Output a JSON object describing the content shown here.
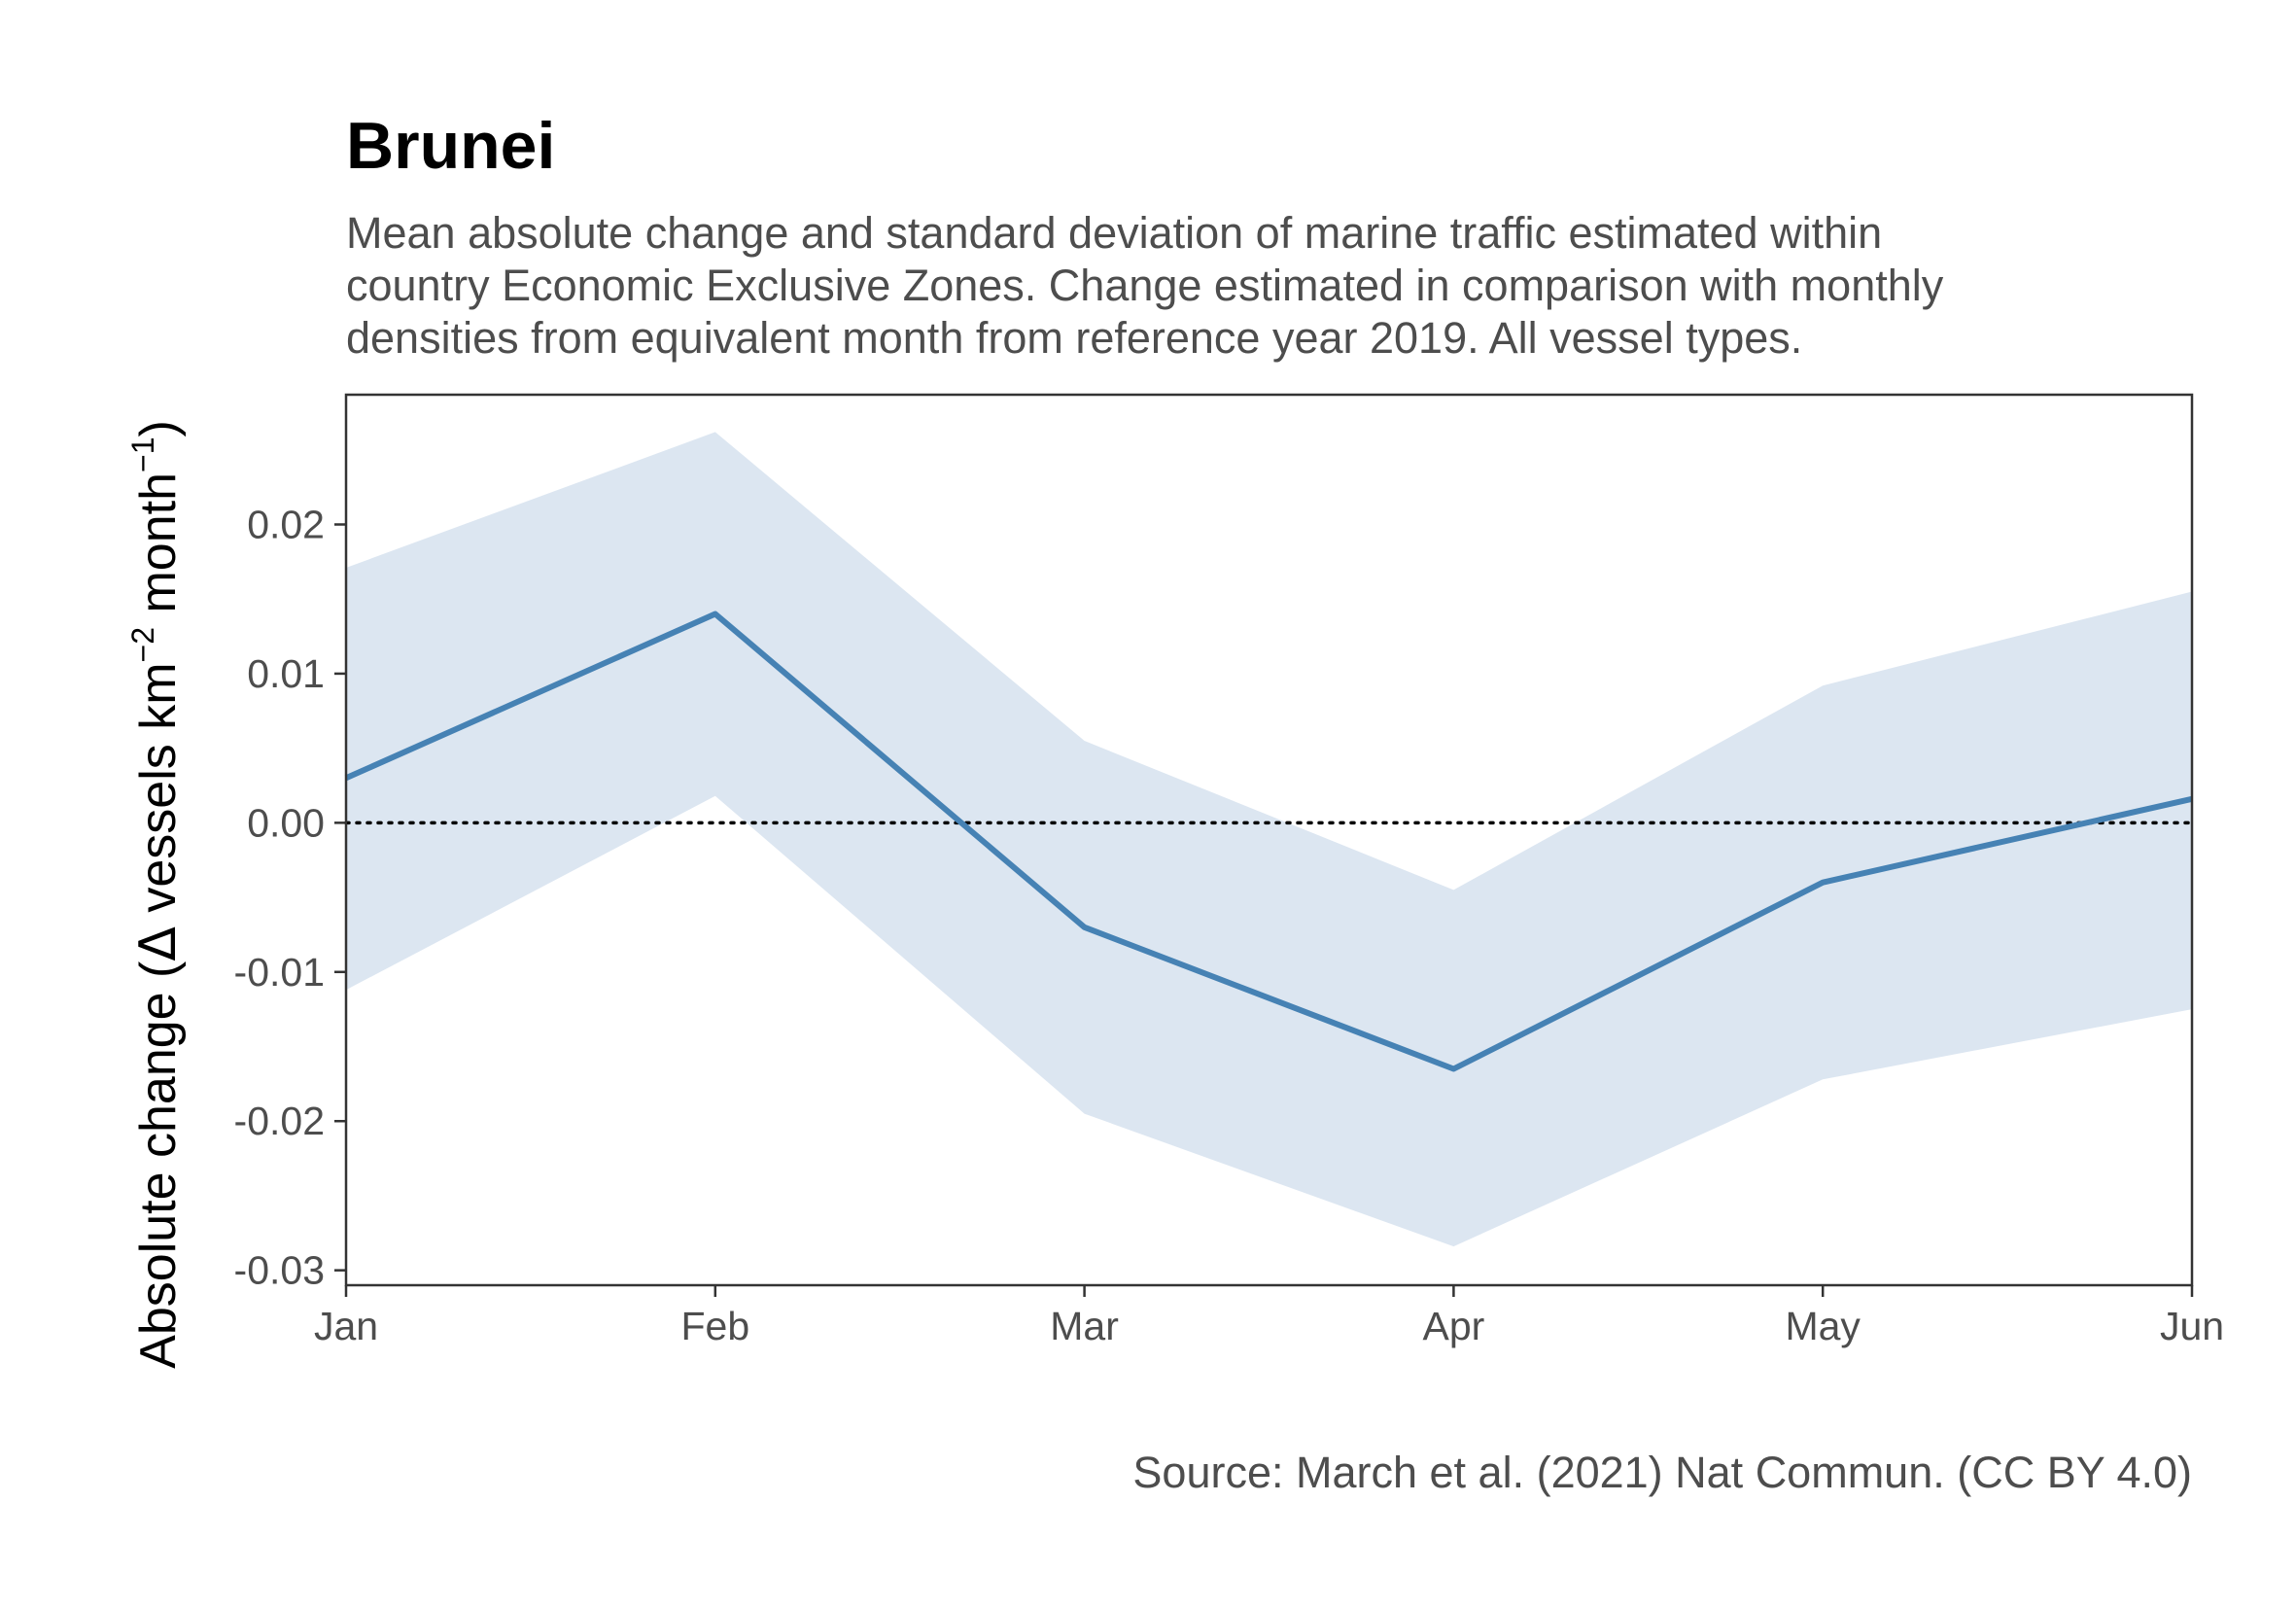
{
  "chart_data": {
    "type": "line",
    "title": "Brunei",
    "subtitle": [
      "Mean absolute change and standard deviation of marine traffic estimated within",
      "country Economic Exclusive Zones. Change estimated in comparison with monthly",
      "densities from equivalent month from reference year 2019. All vessel types."
    ],
    "ylabel": {
      "prefix": "Absolute change (",
      "delta": "Δ",
      "main": " vessels km",
      "sup1": "−2",
      "mid": " month",
      "sup2": "−1",
      "suffix": ")"
    },
    "xlabel": "",
    "categories": [
      "Jan",
      "Feb",
      "Mar",
      "Apr",
      "May",
      "Jun"
    ],
    "series": [
      {
        "values": [
          0.003,
          0.014,
          -0.007,
          -0.0165,
          -0.004,
          0.0016
        ],
        "lower": [
          -0.0112,
          0.0018,
          -0.0195,
          -0.0284,
          -0.0172,
          -0.0125
        ],
        "upper": [
          0.0171,
          0.0262,
          0.0055,
          -0.0045,
          0.0092,
          0.0155
        ],
        "line_color": "#4682b4",
        "band_color": "#dce6f1"
      }
    ],
    "yticks": [
      -0.03,
      -0.02,
      -0.01,
      0.0,
      0.01,
      0.02
    ],
    "ytick_labels": [
      "-0.03",
      "-0.02",
      "-0.01",
      "0.00",
      "0.01",
      "0.02"
    ],
    "ylim": [
      -0.031,
      0.0287
    ],
    "reference_line": 0,
    "grid": false,
    "caption": "Source: March et al. (2021) Nat Commun. (CC BY 4.0)"
  }
}
